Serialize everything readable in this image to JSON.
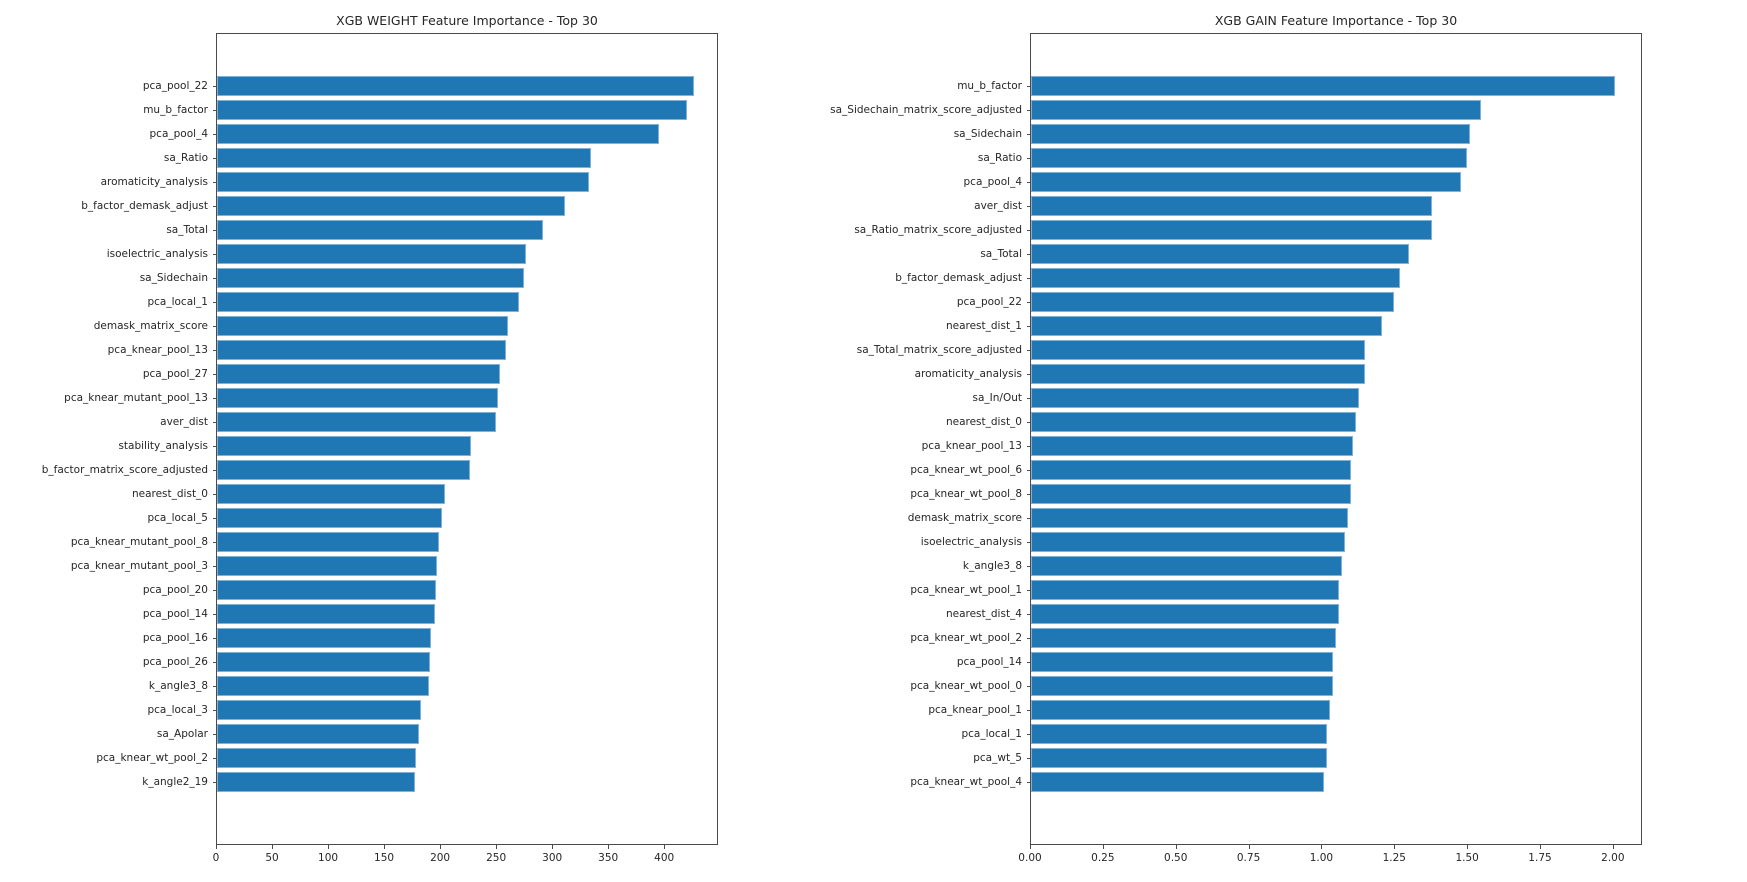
{
  "page": {
    "background_color": "#ffffff",
    "text_color": "#262626",
    "accent_color": "#1f77b4"
  },
  "chart_data": [
    {
      "type": "bar",
      "orientation": "horizontal",
      "title": "XGB WEIGHT Feature Importance - Top 30",
      "xlabel": "",
      "ylabel": "",
      "bar_color": "#1f77b4",
      "grid": false,
      "legend": null,
      "xlim": [
        0,
        448
      ],
      "xticks": [
        {
          "value": 0,
          "label": "0"
        },
        {
          "value": 50,
          "label": "50"
        },
        {
          "value": 100,
          "label": "100"
        },
        {
          "value": 150,
          "label": "150"
        },
        {
          "value": 200,
          "label": "200"
        },
        {
          "value": 250,
          "label": "250"
        },
        {
          "value": 300,
          "label": "300"
        },
        {
          "value": 350,
          "label": "350"
        },
        {
          "value": 400,
          "label": "400"
        }
      ],
      "categories": [
        "pca_pool_22",
        "mu_b_factor",
        "pca_pool_4",
        "sa_Ratio",
        "aromaticity_analysis",
        "b_factor_demask_adjust",
        "sa_Total",
        "isoelectric_analysis",
        "sa_Sidechain",
        "pca_local_1",
        "demask_matrix_score",
        "pca_knear_pool_13",
        "pca_pool_27",
        "pca_knear_mutant_pool_13",
        "aver_dist",
        "stability_analysis",
        "b_factor_matrix_score_adjusted",
        "nearest_dist_0",
        "pca_local_5",
        "pca_knear_mutant_pool_8",
        "pca_knear_mutant_pool_3",
        "pca_pool_20",
        "pca_pool_14",
        "pca_pool_16",
        "pca_pool_26",
        "k_angle3_8",
        "pca_local_3",
        "sa_Apolar",
        "pca_knear_wt_pool_2",
        "k_angle2_19"
      ],
      "values": [
        427,
        421,
        396,
        335,
        333,
        312,
        292,
        277,
        275,
        271,
        261,
        259,
        254,
        252,
        250,
        228,
        227,
        204,
        202,
        199,
        197,
        196,
        195,
        192,
        191,
        190,
        183,
        181,
        178,
        177
      ]
    },
    {
      "type": "bar",
      "orientation": "horizontal",
      "title": "XGB GAIN Feature Importance - Top 30",
      "xlabel": "",
      "ylabel": "",
      "bar_color": "#1f77b4",
      "grid": false,
      "legend": null,
      "xlim": [
        0,
        2.1
      ],
      "xticks": [
        {
          "value": 0,
          "label": "0.00"
        },
        {
          "value": 0.25,
          "label": "0.25"
        },
        {
          "value": 0.5,
          "label": "0.50"
        },
        {
          "value": 0.75,
          "label": "0.75"
        },
        {
          "value": 1.0,
          "label": "1.00"
        },
        {
          "value": 1.25,
          "label": "1.25"
        },
        {
          "value": 1.5,
          "label": "1.50"
        },
        {
          "value": 1.75,
          "label": "1.75"
        },
        {
          "value": 2.0,
          "label": "2.00"
        }
      ],
      "categories": [
        "mu_b_factor",
        "sa_Sidechain_matrix_score_adjusted",
        "sa_Sidechain",
        "sa_Ratio",
        "pca_pool_4",
        "aver_dist",
        "sa_Ratio_matrix_score_adjusted",
        "sa_Total",
        "b_factor_demask_adjust",
        "pca_pool_22",
        "nearest_dist_1",
        "sa_Total_matrix_score_adjusted",
        "aromaticity_analysis",
        "sa_In/Out",
        "nearest_dist_0",
        "pca_knear_pool_13",
        "pca_knear_wt_pool_6",
        "pca_knear_wt_pool_8",
        "demask_matrix_score",
        "isoelectric_analysis",
        "k_angle3_8",
        "pca_knear_wt_pool_1",
        "nearest_dist_4",
        "pca_knear_wt_pool_2",
        "pca_pool_14",
        "pca_knear_wt_pool_0",
        "pca_knear_pool_1",
        "pca_local_1",
        "pca_wt_5",
        "pca_knear_wt_pool_4"
      ],
      "values": [
        2.01,
        1.55,
        1.51,
        1.5,
        1.48,
        1.38,
        1.38,
        1.3,
        1.27,
        1.25,
        1.21,
        1.15,
        1.15,
        1.13,
        1.12,
        1.11,
        1.1,
        1.1,
        1.09,
        1.08,
        1.07,
        1.06,
        1.06,
        1.05,
        1.04,
        1.04,
        1.03,
        1.02,
        1.02,
        1.01
      ]
    }
  ]
}
